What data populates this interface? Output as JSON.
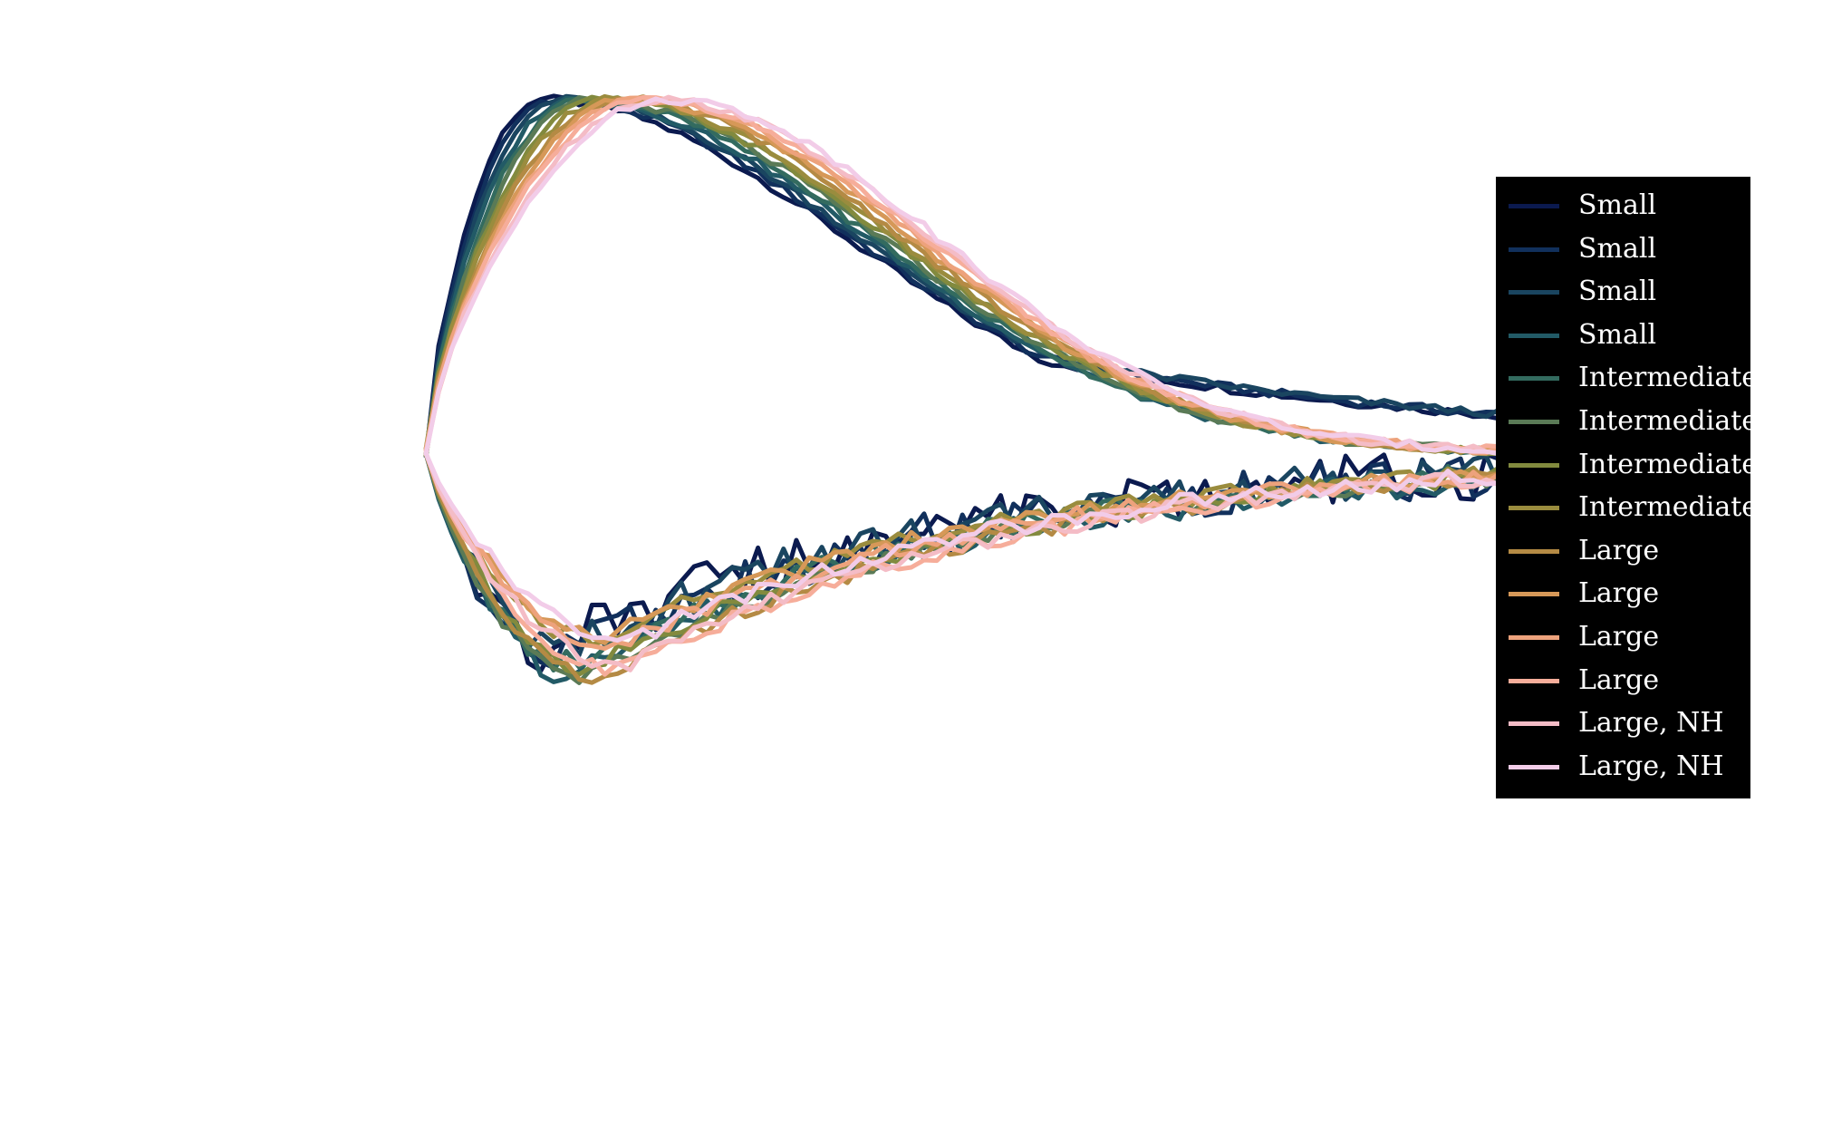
{
  "chart_data": {
    "type": "line",
    "title": "",
    "xlabel": "",
    "ylabel": "",
    "xlim": [
      0,
      100
    ],
    "ylim": [
      -1.0,
      1.0
    ],
    "grid": false,
    "legend_position": "right",
    "series": [
      {
        "name": "Small",
        "color": "#0b1a4f"
      },
      {
        "name": "Small",
        "color": "#11305c"
      },
      {
        "name": "Small",
        "color": "#1a4560"
      },
      {
        "name": "Small",
        "color": "#225a66"
      },
      {
        "name": "Intermediate",
        "color": "#336b5f"
      },
      {
        "name": "Intermediate",
        "color": "#5a7a56"
      },
      {
        "name": "Intermediate",
        "color": "#828a3e"
      },
      {
        "name": "Intermediate",
        "color": "#9a8c3e"
      },
      {
        "name": "Large",
        "color": "#b48a44"
      },
      {
        "name": "Large",
        "color": "#d69858"
      },
      {
        "name": "Large",
        "color": "#eda27c"
      },
      {
        "name": "Large",
        "color": "#f6ad9a"
      },
      {
        "name": "Large, NH",
        "color": "#f4bcc6"
      },
      {
        "name": "Large, NH",
        "color": "#f2cce8"
      }
    ]
  }
}
